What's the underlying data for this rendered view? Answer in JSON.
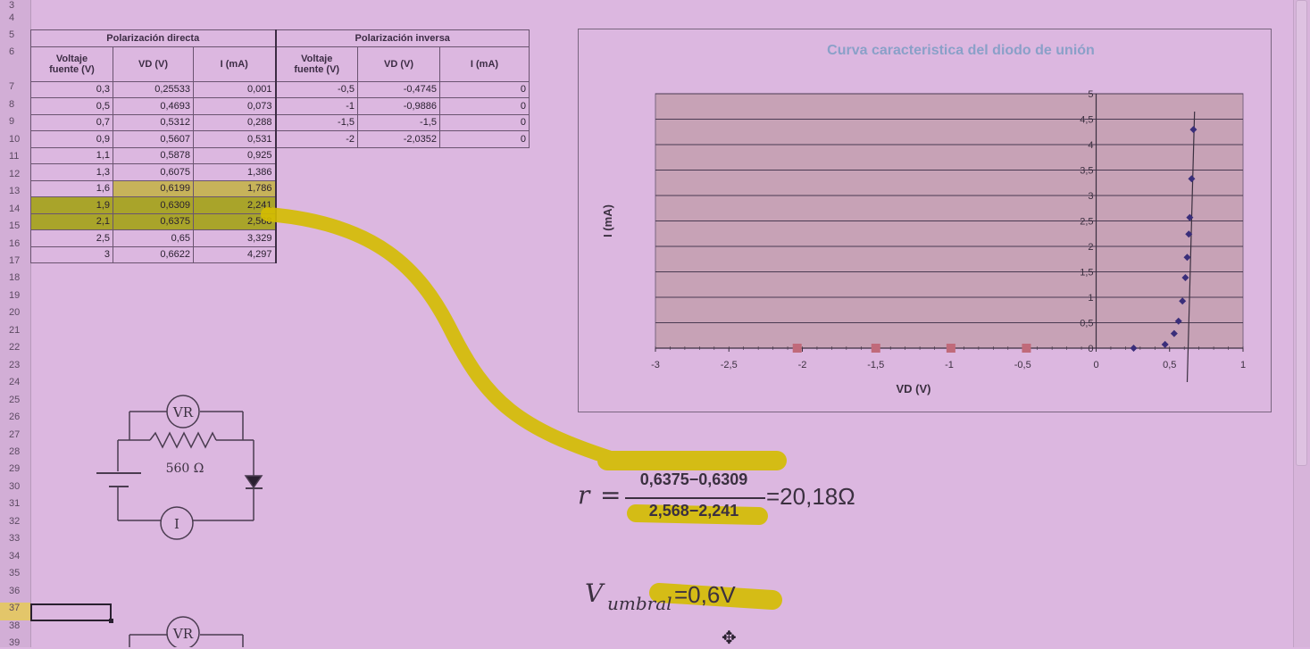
{
  "rows": [
    "3",
    "4",
    "5",
    "6",
    "7",
    "8",
    "9",
    "10",
    "11",
    "12",
    "13",
    "14",
    "15",
    "16",
    "17",
    "18",
    "19",
    "20",
    "21",
    "22",
    "23",
    "24",
    "25",
    "26",
    "27",
    "28",
    "29",
    "30",
    "31",
    "32",
    "33",
    "34",
    "35",
    "36",
    "37",
    "38",
    "39"
  ],
  "table": {
    "direct_title": "Polarización directa",
    "inverse_title": "Polarización inversa",
    "col_voltaje_line1": "Voltaje",
    "col_voltaje_line2": "fuente (V)",
    "col_vd": "VD (V)",
    "col_i": "I (mA)",
    "direct_rows": [
      [
        "0,3",
        "0,25533",
        "0,001"
      ],
      [
        "0,5",
        "0,4693",
        "0,073"
      ],
      [
        "0,7",
        "0,5312",
        "0,288"
      ],
      [
        "0,9",
        "0,5607",
        "0,531"
      ],
      [
        "1,1",
        "0,5878",
        "0,925"
      ],
      [
        "1,3",
        "0,6075",
        "1,386"
      ],
      [
        "1,6",
        "0,6199",
        "1,786"
      ],
      [
        "1,9",
        "0,6309",
        "2,241"
      ],
      [
        "2,1",
        "0,6375",
        "2,568"
      ],
      [
        "2,5",
        "0,65",
        "3,329"
      ],
      [
        "3",
        "0,6622",
        "4,297"
      ]
    ],
    "inverse_rows": [
      [
        "-0,5",
        "-0,4745",
        "0"
      ],
      [
        "-1",
        "-0,9886",
        "0"
      ],
      [
        "-1,5",
        "-1,5",
        "0"
      ],
      [
        "-2",
        "-2,0352",
        "0"
      ]
    ]
  },
  "chart_data": {
    "type": "scatter",
    "title": "Curva caracteristica del diodo de unión",
    "xlabel": "VD (V)",
    "ylabel": "I (mA)",
    "xlim": [
      -3,
      1
    ],
    "ylim": [
      0,
      5
    ],
    "xticks": [
      "-3",
      "-2,5",
      "-2",
      "-1,5",
      "-1",
      "-0,5",
      "0",
      "0,5",
      "1"
    ],
    "yticks": [
      "0",
      "0,5",
      "1",
      "1,5",
      "2",
      "2,5",
      "3",
      "3,5",
      "4",
      "4,5",
      "5"
    ],
    "grid": true,
    "series": [
      {
        "color": "#3a2e7a",
        "marker": "diamond",
        "x": [
          0.25533,
          0.4693,
          0.5312,
          0.5607,
          0.5878,
          0.6075,
          0.6199,
          0.6309,
          0.6375,
          0.65,
          0.6622
        ],
        "y": [
          0.001,
          0.073,
          0.288,
          0.531,
          0.925,
          1.386,
          1.786,
          2.241,
          2.568,
          3.329,
          4.297
        ]
      },
      {
        "color": "#c06a7a",
        "marker": "square",
        "x": [
          -0.4745,
          -0.9886,
          -1.5,
          -2.0352
        ],
        "y": [
          0,
          0,
          0,
          0
        ]
      }
    ]
  },
  "circuit": {
    "meter_vr": "VR",
    "meter_i": "I",
    "resistor": "560 Ω"
  },
  "formula": {
    "r_var": "r",
    "eq": "=",
    "num": "0,6375−0,6309",
    "den": "2,568−2,241",
    "result": "=20,18Ω",
    "v_var": "V",
    "v_sub": "umbral",
    "v_val": "=0,6V"
  },
  "colors": {
    "background": "#dcb7e0",
    "highlight": "#d4bd00",
    "series_direct": "#3a2e7a",
    "series_inverse": "#c06a7a",
    "title": "#8aa0c8"
  }
}
